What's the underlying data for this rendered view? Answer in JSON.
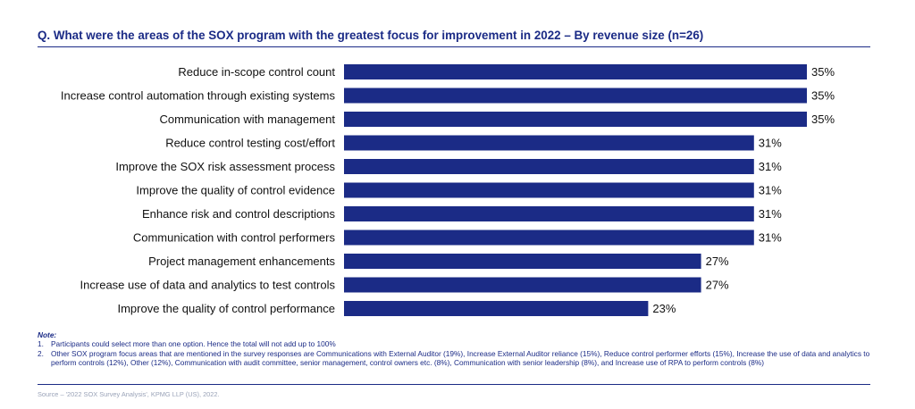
{
  "title": "Q. What were the areas of the SOX program with the greatest focus for improvement in 2022 – By revenue size (n=26)",
  "colors": {
    "bar": "#1b2b86",
    "title": "#1b2b86",
    "label": "#111111",
    "source": "#9aa3b8"
  },
  "chart_data": {
    "type": "bar",
    "orientation": "horizontal",
    "title": "Q. What were the areas of the SOX program with the greatest focus for improvement in 2022 – By revenue size (n=26)",
    "xlabel": "",
    "ylabel": "",
    "xlim": [
      0,
      35
    ],
    "grid": false,
    "value_suffix": "%",
    "categories": [
      "Reduce in-scope control count",
      "Increase control automation through existing systems",
      "Communication with management",
      "Reduce control testing cost/effort",
      "Improve the SOX risk assessment process",
      "Improve the quality of control evidence",
      "Enhance risk and control descriptions",
      "Communication with control performers",
      "Project management enhancements",
      "Increase use of data and analytics to test controls",
      "Improve the quality of control performance"
    ],
    "values": [
      35,
      35,
      35,
      31,
      31,
      31,
      31,
      31,
      27,
      27,
      23
    ],
    "data_labels": [
      "35%",
      "35%",
      "35%",
      "31%",
      "31%",
      "31%",
      "31%",
      "31%",
      "27%",
      "27%",
      "23%"
    ]
  },
  "notes": {
    "heading": "Note:",
    "items": [
      {
        "num": "1.",
        "text": "Participants could select more than one option. Hence the total will not add up to 100%"
      },
      {
        "num": "2.",
        "text": "Other SOX program focus areas that are mentioned in the survey responses are Communications with External Auditor (19%), Increase External Auditor reliance (15%), Reduce control performer efforts (15%), Increase the use of data and analytics to perform controls (12%), Other (12%), Communication with audit committee, senior management, control owners etc. (8%), Communication with senior leadership (8%), and Increase use of RPA to perform controls (8%)"
      }
    ]
  },
  "source": "Source – '2022 SOX Survey Analysis', KPMG LLP (US), 2022."
}
